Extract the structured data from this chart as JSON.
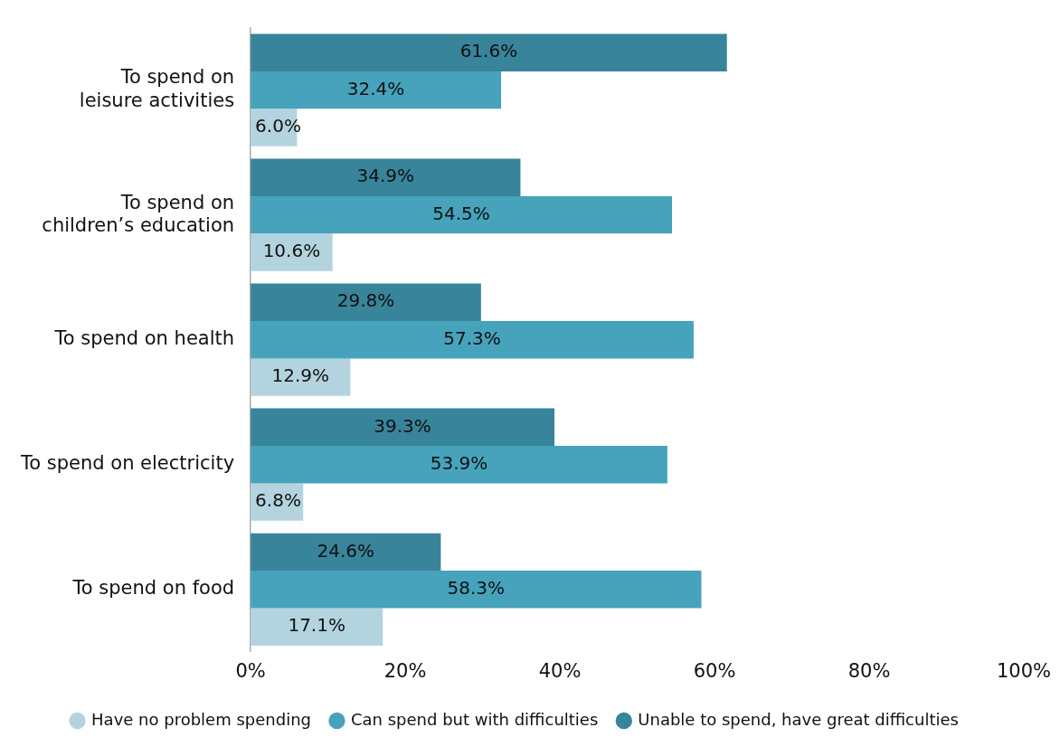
{
  "chart_data": {
    "type": "bar",
    "orientation": "horizontal",
    "categories": [
      "To spend on leisure activities",
      "To spend on children’s education",
      "To spend on health",
      "To spend on electricity",
      "To spend on food"
    ],
    "series": [
      {
        "name": "Have no problem spending",
        "color": "#b3d4df",
        "values": [
          6.0,
          10.6,
          12.9,
          6.8,
          17.1
        ],
        "value_labels": [
          "6.0%",
          "10.6%",
          "12.9%",
          "6.8%",
          "17.1%"
        ]
      },
      {
        "name": "Can spend but with difficulties",
        "color": "#46a3bb",
        "values": [
          32.4,
          54.5,
          57.3,
          53.9,
          58.3
        ],
        "value_labels": [
          "32.4%",
          "54.5%",
          "57.3%",
          "53.9%",
          "58.3%"
        ]
      },
      {
        "name": "Unable to spend, have great difficulties",
        "color": "#38849a",
        "values": [
          61.6,
          34.9,
          29.8,
          39.3,
          24.6
        ],
        "value_labels": [
          "61.6%",
          "34.9%",
          "29.8%",
          "39.3%",
          "24.6%"
        ]
      }
    ],
    "xlim": [
      0,
      100
    ],
    "xticks": [
      {
        "value": 0,
        "label": "0%"
      },
      {
        "value": 20,
        "label": "20%"
      },
      {
        "value": 40,
        "label": "40%"
      },
      {
        "value": 60,
        "label": "60%"
      },
      {
        "value": 80,
        "label": "80%"
      },
      {
        "value": 100,
        "label": "100%"
      }
    ],
    "grid": false,
    "legend": "bottom"
  }
}
